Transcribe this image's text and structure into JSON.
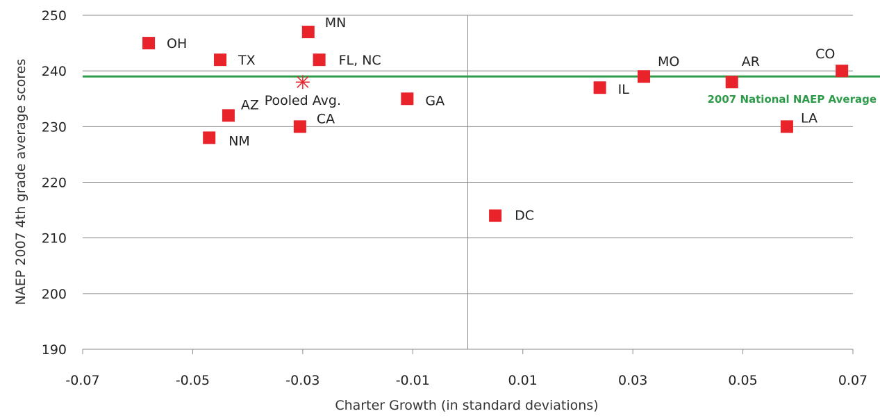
{
  "chart_data": {
    "type": "scatter",
    "xlabel": "Charter Growth (in standard deviations)",
    "ylabel": "NAEP 2007 4th grade average scores",
    "xlim": [
      -0.07,
      0.07
    ],
    "ylim": [
      190,
      250
    ],
    "x_ticks": [
      "-0.07",
      "-0.05",
      "-0.03",
      "-0.01",
      "0.01",
      "0.03",
      "0.05",
      "0.07"
    ],
    "y_ticks": [
      "190",
      "200",
      "210",
      "220",
      "230",
      "240",
      "250"
    ],
    "grid": "horizontal",
    "marker_color": "#e8232a",
    "reference_line": {
      "label": "2007 National NAEP Average",
      "y": 239,
      "color": "#2e9b4a"
    },
    "points": [
      {
        "label": "OH",
        "x": -0.058,
        "y": 245
      },
      {
        "label": "TX",
        "x": -0.045,
        "y": 242
      },
      {
        "label": "MN",
        "x": -0.029,
        "y": 247
      },
      {
        "label": "FL, NC",
        "x": -0.027,
        "y": 242
      },
      {
        "label": "AZ",
        "x": -0.0435,
        "y": 232
      },
      {
        "label": "NM",
        "x": -0.047,
        "y": 228
      },
      {
        "label": "CA",
        "x": -0.0305,
        "y": 230
      },
      {
        "label": "GA",
        "x": -0.011,
        "y": 235
      },
      {
        "label": "DC",
        "x": 0.005,
        "y": 214
      },
      {
        "label": "IL",
        "x": 0.024,
        "y": 237
      },
      {
        "label": "MO",
        "x": 0.032,
        "y": 239
      },
      {
        "label": "AR",
        "x": 0.048,
        "y": 238
      },
      {
        "label": "CO",
        "x": 0.068,
        "y": 240
      },
      {
        "label": "LA",
        "x": 0.058,
        "y": 230
      }
    ],
    "pooled_average": {
      "label": "Pooled Avg.",
      "x": -0.03,
      "y": 238,
      "color": "#e8232a"
    }
  }
}
